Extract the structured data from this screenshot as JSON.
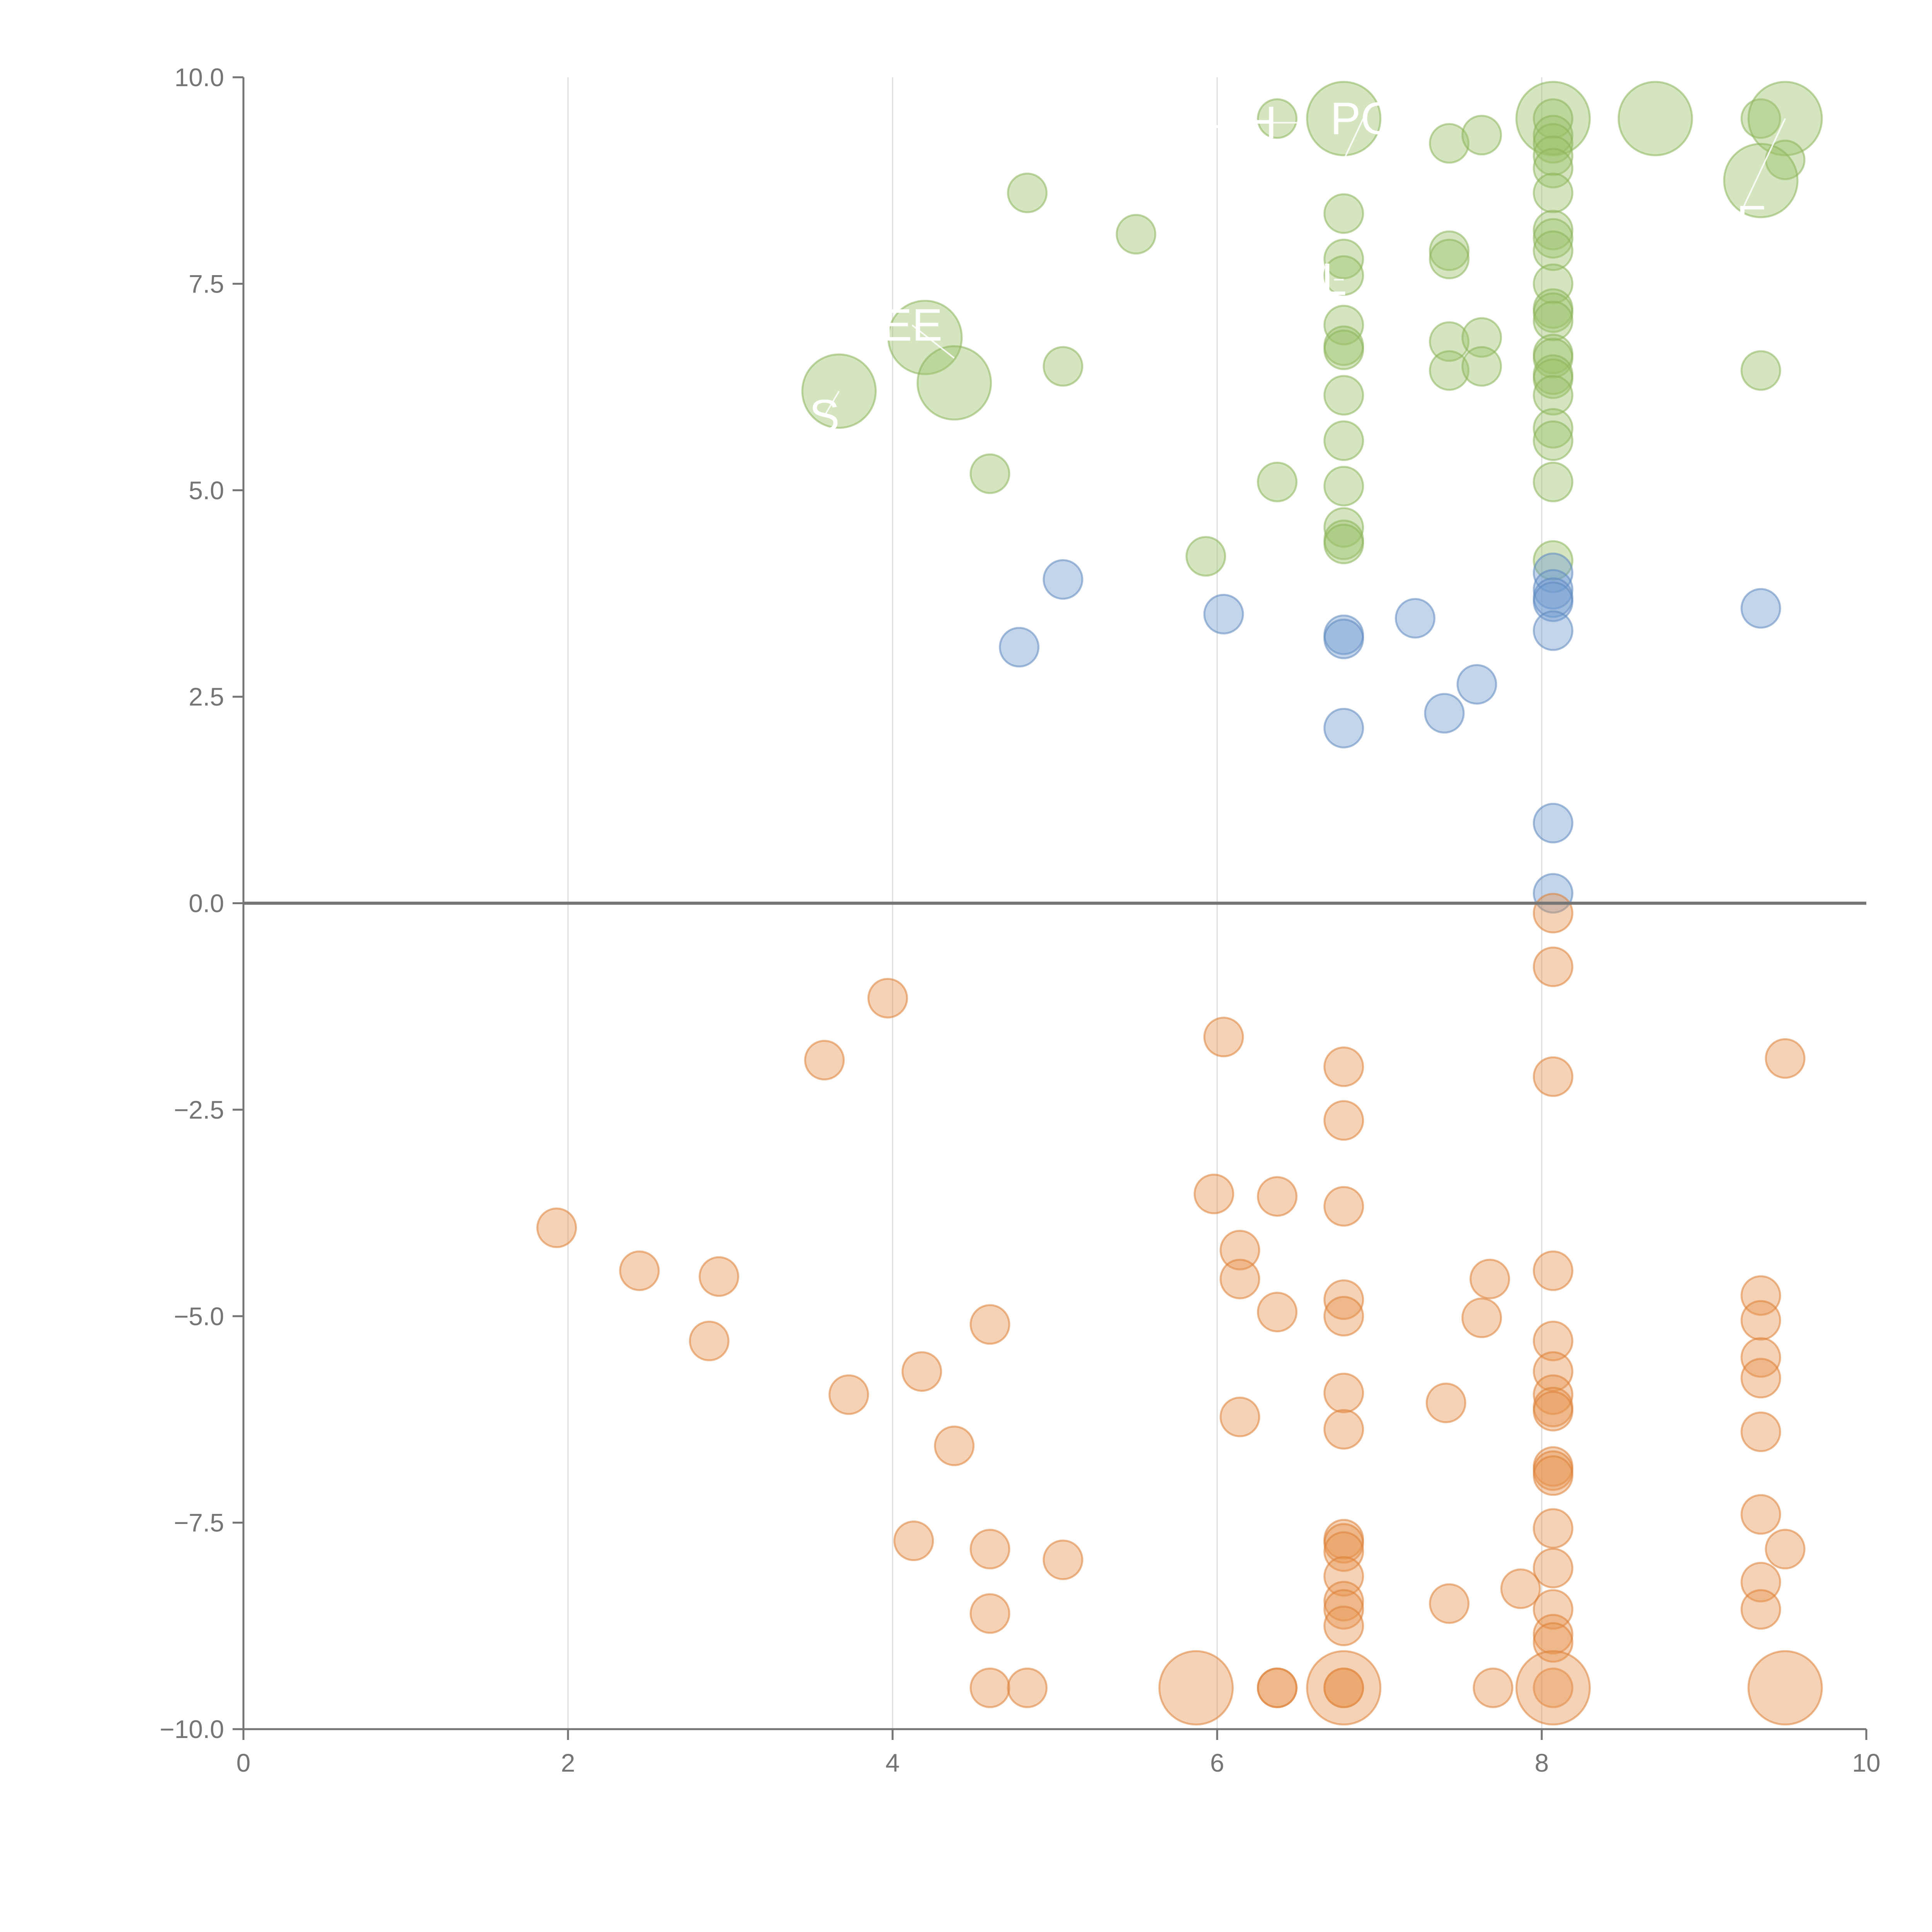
{
  "chart_data": {
    "type": "scatter",
    "title": "",
    "xlabel": "",
    "ylabel": "",
    "xlim": [
      0,
      10
    ],
    "ylim": [
      -10,
      10
    ],
    "x_ticks": [
      0,
      2,
      4,
      6,
      8,
      10
    ],
    "y_ticks": [
      10,
      7.5,
      5,
      2.5,
      0,
      -2.5,
      -5,
      -7.5,
      -10
    ],
    "x_tick_labels": [
      "0",
      "2",
      "4",
      "6",
      "8",
      "10"
    ],
    "y_tick_labels": [
      "10.0",
      "7.5",
      "5.0",
      "2.5",
      "0.0",
      "−2.5",
      "−5.0",
      "−7.5",
      "−10.0"
    ],
    "grid": {
      "vertical": true,
      "horizontal": false
    },
    "zero_line": true,
    "colors": {
      "green": {
        "fill": "#9cc26a",
        "stroke": "#8ab45a"
      },
      "blue": {
        "fill": "#6f9bd0",
        "stroke": "#5d88c0"
      },
      "orange": {
        "fill": "#e8934f",
        "stroke": "#dd7f36"
      }
    },
    "series": [
      {
        "color": "green",
        "points": [
          {
            "x": 4.83,
            "y": 8.6
          },
          {
            "x": 5.5,
            "y": 8.1
          },
          {
            "x": 6.37,
            "y": 9.5
          },
          {
            "x": 6.78,
            "y": 9.5,
            "big": true
          },
          {
            "x": 7.43,
            "y": 9.2
          },
          {
            "x": 7.63,
            "y": 9.3
          },
          {
            "x": 8.07,
            "y": 9.5,
            "big": true
          },
          {
            "x": 8.7,
            "y": 9.5,
            "big": true
          },
          {
            "x": 9.35,
            "y": 9.5
          },
          {
            "x": 9.5,
            "y": 9.5,
            "big": true
          },
          {
            "x": 9.5,
            "y": 9.0
          },
          {
            "x": 9.35,
            "y": 8.75,
            "big": true
          },
          {
            "x": 6.78,
            "y": 8.35
          },
          {
            "x": 6.78,
            "y": 7.8
          },
          {
            "x": 6.78,
            "y": 7.6
          },
          {
            "x": 6.78,
            "y": 7.0
          },
          {
            "x": 6.78,
            "y": 6.75
          },
          {
            "x": 6.78,
            "y": 6.7
          },
          {
            "x": 6.78,
            "y": 6.15
          },
          {
            "x": 6.78,
            "y": 5.6
          },
          {
            "x": 6.78,
            "y": 5.05
          },
          {
            "x": 6.78,
            "y": 4.55
          },
          {
            "x": 6.78,
            "y": 4.4
          },
          {
            "x": 6.78,
            "y": 4.35
          },
          {
            "x": 7.43,
            "y": 7.9
          },
          {
            "x": 7.43,
            "y": 7.8
          },
          {
            "x": 7.43,
            "y": 6.8
          },
          {
            "x": 7.43,
            "y": 6.45
          },
          {
            "x": 7.63,
            "y": 6.85
          },
          {
            "x": 7.63,
            "y": 6.5
          },
          {
            "x": 8.07,
            "y": 9.5
          },
          {
            "x": 8.07,
            "y": 9.3
          },
          {
            "x": 8.07,
            "y": 9.2
          },
          {
            "x": 8.07,
            "y": 9.05
          },
          {
            "x": 8.07,
            "y": 8.9
          },
          {
            "x": 8.07,
            "y": 8.6
          },
          {
            "x": 8.07,
            "y": 8.15
          },
          {
            "x": 8.07,
            "y": 8.05
          },
          {
            "x": 8.07,
            "y": 7.9
          },
          {
            "x": 8.07,
            "y": 7.5
          },
          {
            "x": 8.07,
            "y": 7.2
          },
          {
            "x": 8.07,
            "y": 7.15
          },
          {
            "x": 8.07,
            "y": 7.05
          },
          {
            "x": 8.07,
            "y": 6.65
          },
          {
            "x": 8.07,
            "y": 6.6
          },
          {
            "x": 8.07,
            "y": 6.4
          },
          {
            "x": 8.07,
            "y": 6.35
          },
          {
            "x": 8.07,
            "y": 6.15
          },
          {
            "x": 8.07,
            "y": 5.75
          },
          {
            "x": 8.07,
            "y": 5.6
          },
          {
            "x": 8.07,
            "y": 5.1
          },
          {
            "x": 8.07,
            "y": 4.15
          },
          {
            "x": 9.35,
            "y": 6.45
          },
          {
            "x": 4.2,
            "y": 6.85,
            "big": true
          },
          {
            "x": 4.38,
            "y": 6.3,
            "big": true
          },
          {
            "x": 3.67,
            "y": 6.2,
            "big": true
          },
          {
            "x": 5.05,
            "y": 6.5
          },
          {
            "x": 4.6,
            "y": 5.2
          },
          {
            "x": 6.37,
            "y": 5.1
          },
          {
            "x": 5.93,
            "y": 4.2
          }
        ]
      },
      {
        "color": "blue",
        "points": [
          {
            "x": 5.05,
            "y": 3.92
          },
          {
            "x": 4.78,
            "y": 3.1
          },
          {
            "x": 6.04,
            "y": 3.5
          },
          {
            "x": 6.78,
            "y": 3.25
          },
          {
            "x": 6.78,
            "y": 3.2
          },
          {
            "x": 7.22,
            "y": 3.45
          },
          {
            "x": 7.6,
            "y": 2.65
          },
          {
            "x": 7.4,
            "y": 2.3
          },
          {
            "x": 6.78,
            "y": 2.12
          },
          {
            "x": 8.07,
            "y": 4.0
          },
          {
            "x": 8.07,
            "y": 3.8
          },
          {
            "x": 8.07,
            "y": 3.7
          },
          {
            "x": 8.07,
            "y": 3.65
          },
          {
            "x": 8.07,
            "y": 3.3
          },
          {
            "x": 9.35,
            "y": 3.57
          },
          {
            "x": 8.07,
            "y": 0.97
          },
          {
            "x": 8.07,
            "y": 0.12
          }
        ]
      },
      {
        "color": "orange",
        "points": [
          {
            "x": 8.07,
            "y": -0.12
          },
          {
            "x": 8.07,
            "y": -0.77
          },
          {
            "x": 3.97,
            "y": -1.15
          },
          {
            "x": 3.58,
            "y": -1.9
          },
          {
            "x": 6.04,
            "y": -1.62
          },
          {
            "x": 6.78,
            "y": -1.98
          },
          {
            "x": 8.07,
            "y": -2.1
          },
          {
            "x": 9.5,
            "y": -1.88
          },
          {
            "x": 6.78,
            "y": -2.63
          },
          {
            "x": 5.98,
            "y": -3.52
          },
          {
            "x": 6.37,
            "y": -3.55
          },
          {
            "x": 6.78,
            "y": -3.67
          },
          {
            "x": 1.93,
            "y": -3.93
          },
          {
            "x": 2.44,
            "y": -4.45
          },
          {
            "x": 2.93,
            "y": -4.52
          },
          {
            "x": 6.14,
            "y": -4.2
          },
          {
            "x": 6.14,
            "y": -4.55
          },
          {
            "x": 7.68,
            "y": -4.55
          },
          {
            "x": 8.07,
            "y": -4.45
          },
          {
            "x": 9.35,
            "y": -4.75
          },
          {
            "x": 6.78,
            "y": -4.8
          },
          {
            "x": 6.78,
            "y": -5.0
          },
          {
            "x": 6.37,
            "y": -4.95
          },
          {
            "x": 7.63,
            "y": -5.02
          },
          {
            "x": 9.35,
            "y": -5.05
          },
          {
            "x": 4.6,
            "y": -5.1
          },
          {
            "x": 2.87,
            "y": -5.3
          },
          {
            "x": 8.07,
            "y": -5.3
          },
          {
            "x": 9.35,
            "y": -5.5
          },
          {
            "x": 4.18,
            "y": -5.67
          },
          {
            "x": 8.07,
            "y": -5.67
          },
          {
            "x": 9.35,
            "y": -5.75
          },
          {
            "x": 3.73,
            "y": -5.95
          },
          {
            "x": 6.78,
            "y": -5.93
          },
          {
            "x": 8.07,
            "y": -5.95
          },
          {
            "x": 8.07,
            "y": -6.1
          },
          {
            "x": 7.41,
            "y": -6.05
          },
          {
            "x": 8.07,
            "y": -6.15
          },
          {
            "x": 6.14,
            "y": -6.22
          },
          {
            "x": 6.78,
            "y": -6.37
          },
          {
            "x": 9.35,
            "y": -6.4
          },
          {
            "x": 4.38,
            "y": -6.57
          },
          {
            "x": 8.07,
            "y": -6.82
          },
          {
            "x": 8.07,
            "y": -6.87
          },
          {
            "x": 8.07,
            "y": -6.93
          },
          {
            "x": 9.35,
            "y": -7.4
          },
          {
            "x": 8.07,
            "y": -7.57
          },
          {
            "x": 4.13,
            "y": -7.72
          },
          {
            "x": 6.78,
            "y": -7.7
          },
          {
            "x": 6.78,
            "y": -7.75
          },
          {
            "x": 4.6,
            "y": -7.82
          },
          {
            "x": 6.78,
            "y": -7.85
          },
          {
            "x": 9.5,
            "y": -7.82
          },
          {
            "x": 5.05,
            "y": -7.95
          },
          {
            "x": 8.07,
            "y": -8.05
          },
          {
            "x": 6.78,
            "y": -8.15
          },
          {
            "x": 9.35,
            "y": -8.22
          },
          {
            "x": 7.87,
            "y": -8.3
          },
          {
            "x": 6.78,
            "y": -8.45
          },
          {
            "x": 7.43,
            "y": -8.48
          },
          {
            "x": 6.78,
            "y": -8.55
          },
          {
            "x": 8.07,
            "y": -8.55
          },
          {
            "x": 9.35,
            "y": -8.55
          },
          {
            "x": 4.6,
            "y": -8.6
          },
          {
            "x": 6.78,
            "y": -8.75
          },
          {
            "x": 8.07,
            "y": -8.85
          },
          {
            "x": 8.07,
            "y": -8.95
          },
          {
            "x": 8.07,
            "y": -9.5
          },
          {
            "x": 4.6,
            "y": -9.5
          },
          {
            "x": 4.83,
            "y": -9.5
          },
          {
            "x": 6.37,
            "y": -9.5
          },
          {
            "x": 6.37,
            "y": -9.5
          },
          {
            "x": 6.78,
            "y": -9.5
          },
          {
            "x": 6.78,
            "y": -9.5
          },
          {
            "x": 7.7,
            "y": -9.5
          },
          {
            "x": 5.87,
            "y": -9.5,
            "big": true
          },
          {
            "x": 6.78,
            "y": -9.5,
            "big": true
          },
          {
            "x": 8.07,
            "y": -9.5,
            "big": true
          },
          {
            "x": 9.5,
            "y": -9.5,
            "big": true
          }
        ]
      }
    ],
    "annotations": [
      {
        "text": "PO",
        "x": 6.9,
        "y": 9.5,
        "anchor": [
          6.78,
          9.0
        ]
      },
      {
        "text": "– H",
        "x": 6.15,
        "y": 9.45,
        "anchor": [
          6.55,
          9.45
        ]
      },
      {
        "text": "EE",
        "x": 4.12,
        "y": 7.0,
        "anchor": [
          4.38,
          6.6
        ]
      },
      {
        "text": "S",
        "x": 3.58,
        "y": 5.9,
        "anchor": [
          3.67,
          6.2
        ]
      },
      {
        "text": "SE",
        "x": 9.2,
        "y": 8.25,
        "anchor": [
          9.5,
          9.5
        ]
      },
      {
        "text": "L",
        "x": 6.72,
        "y": 7.55,
        "anchor": [
          6.78,
          7.55
        ]
      }
    ]
  }
}
